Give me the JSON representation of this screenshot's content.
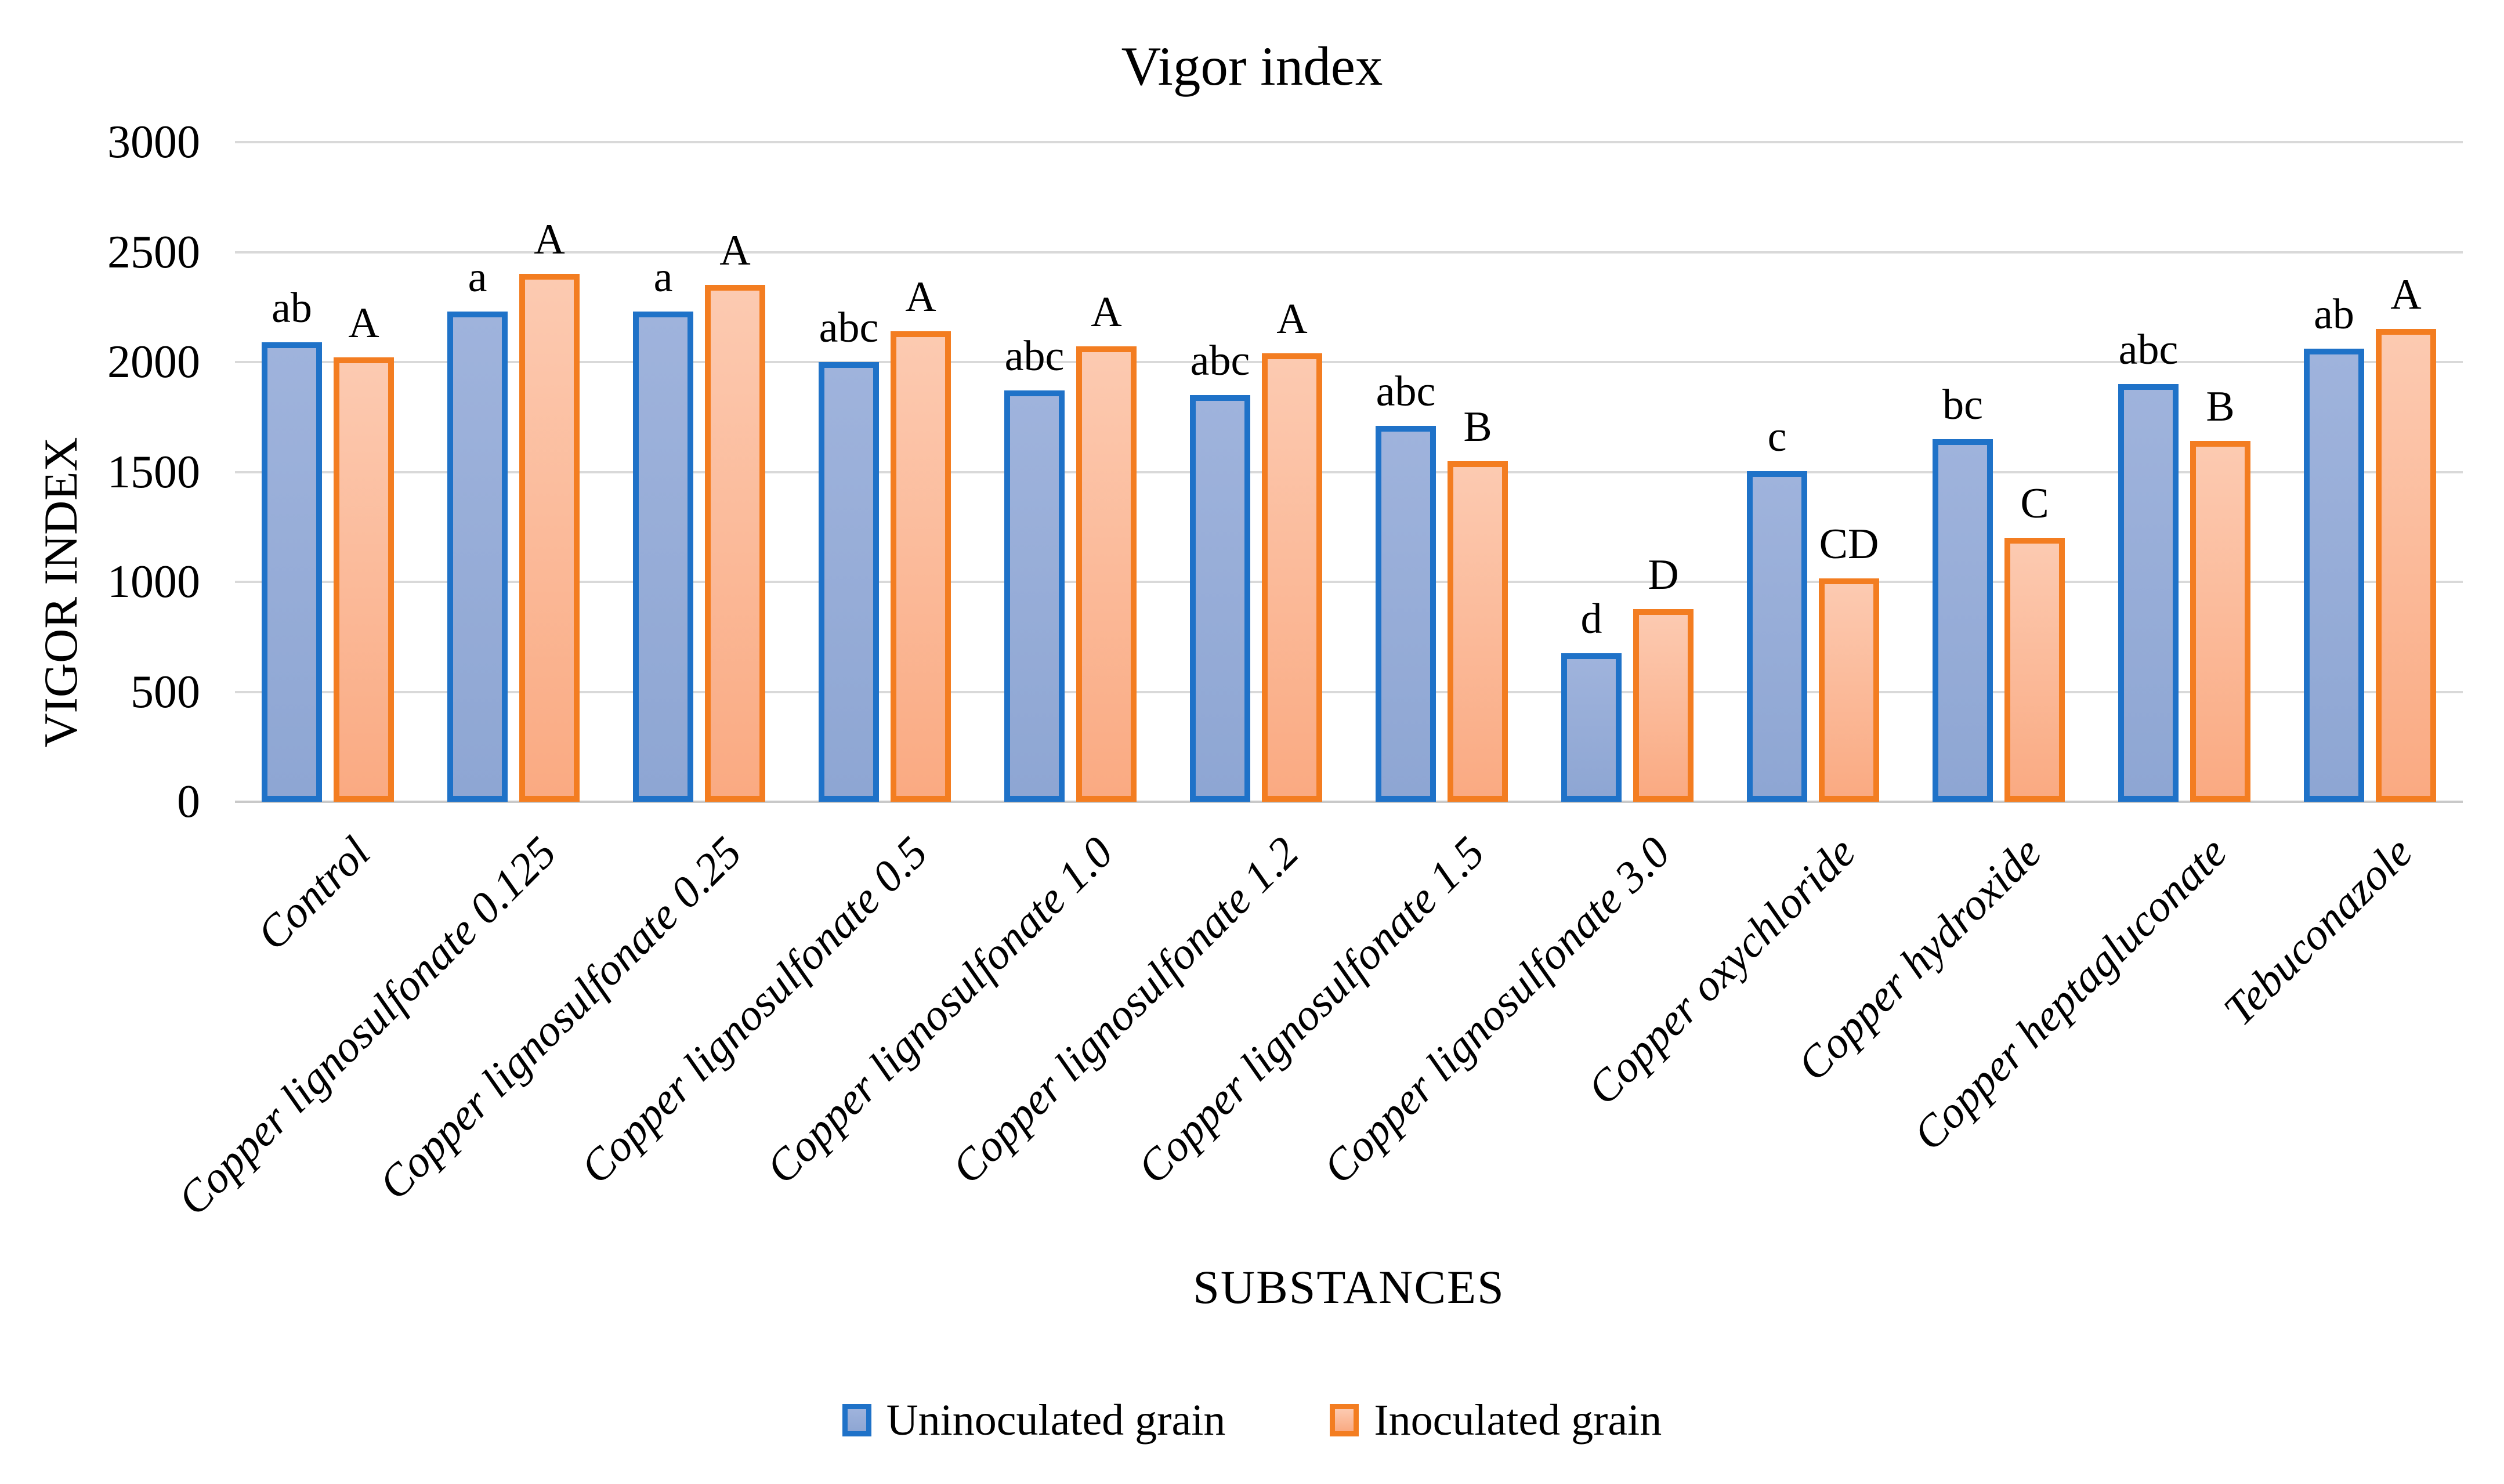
{
  "chart_data": {
    "type": "bar",
    "title": "Vigor index",
    "xlabel": "SUBSTANCES",
    "ylabel": "VIGOR INDEX",
    "ylim": [
      0,
      3000
    ],
    "ytick_step": 500,
    "ytick_labels": [
      "0",
      "500",
      "1000",
      "1500",
      "2000",
      "2500",
      "3000"
    ],
    "grid": true,
    "legend_position": "bottom",
    "categories": [
      "Control",
      "Copper lignosulfonate 0.125",
      "Copper lignosulfonate 0.25",
      "Copper lignosulfonate 0.5",
      "Copper lignosulfonate 1.0",
      "Copper lignosulfonate 1.2",
      "Copper lignosulfonate 1.5",
      "Copper lignosulfonate 3.0",
      "Copper oxychloride",
      "Copper hydroxide",
      "Copper heptagluconate",
      "Tebuconazole"
    ],
    "series": [
      {
        "name": "Uninoculated grain",
        "values": [
          2090,
          2230,
          2230,
          2000,
          1870,
          1850,
          1710,
          675,
          1505,
          1650,
          1900,
          2060
        ],
        "sig_letters": [
          "ab",
          "a",
          "a",
          "abc",
          "abc",
          "abc",
          "abc",
          "d",
          "c",
          "bc",
          "abc",
          "ab"
        ],
        "border_color": "#1F72C8",
        "fill_top": "#9FB3DC",
        "fill_bottom": "#8EA6D3"
      },
      {
        "name": "Inoculated grain",
        "values": [
          2020,
          2400,
          2350,
          2140,
          2070,
          2040,
          1550,
          875,
          1015,
          1200,
          1640,
          2150
        ],
        "sig_letters": [
          "A",
          "A",
          "A",
          "A",
          "A",
          "A",
          "B",
          "D",
          "CD",
          "C",
          "B",
          "A"
        ],
        "border_color": "#F37D21",
        "fill_top": "#FCCAB1",
        "fill_bottom": "#FAAA82"
      }
    ],
    "colors": {
      "gridline": "#D9D9D9",
      "axis_line": "#C9C9C9",
      "text": "#000000"
    }
  }
}
